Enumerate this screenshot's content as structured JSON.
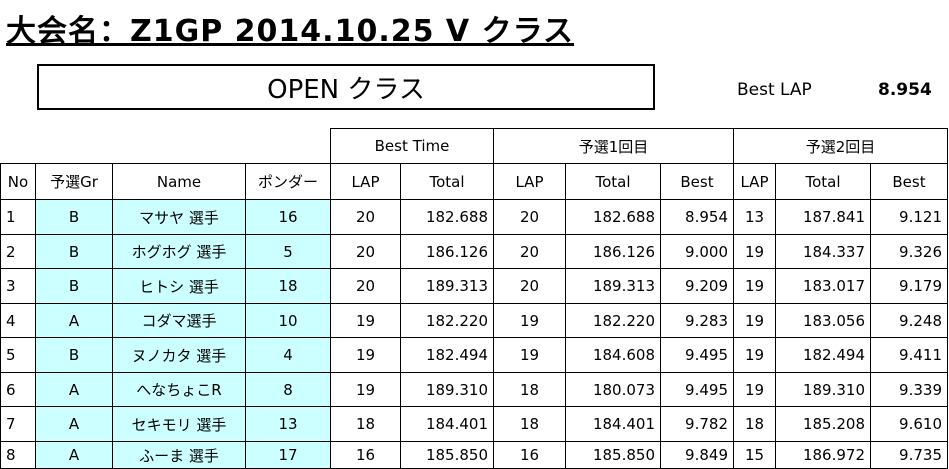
{
  "header": {
    "title": "大会名：Z1GP 2014.10.25 V クラス",
    "class_name": "OPEN クラス",
    "best_lap_label": "Best LAP",
    "best_lap_value": "8.954"
  },
  "table": {
    "group_headers": [
      "Best Time",
      "予選1回目",
      "予選2回目"
    ],
    "headers": [
      "No",
      "予選Gr",
      "Name",
      "ポンダー",
      "LAP",
      "Total",
      "LAP",
      "Total",
      "Best",
      "LAP",
      "Total",
      "Best"
    ],
    "rows": [
      [
        "1",
        "B",
        "マサヤ 選手",
        "16",
        "20",
        "182.688",
        "20",
        "182.688",
        "8.954",
        "13",
        "187.841",
        "9.121"
      ],
      [
        "2",
        "B",
        "ホグホグ 選手",
        "5",
        "20",
        "186.126",
        "20",
        "186.126",
        "9.000",
        "19",
        "184.337",
        "9.326"
      ],
      [
        "3",
        "B",
        "ヒトシ 選手",
        "18",
        "20",
        "189.313",
        "20",
        "189.313",
        "9.209",
        "19",
        "183.017",
        "9.179"
      ],
      [
        "4",
        "A",
        "コダマ選手",
        "10",
        "19",
        "182.220",
        "19",
        "182.220",
        "9.283",
        "19",
        "183.056",
        "9.248"
      ],
      [
        "5",
        "B",
        "ヌノカタ 選手",
        "4",
        "19",
        "182.494",
        "19",
        "184.608",
        "9.495",
        "19",
        "182.494",
        "9.411"
      ],
      [
        "6",
        "A",
        "へなちょこR",
        "8",
        "19",
        "189.310",
        "18",
        "180.073",
        "9.495",
        "19",
        "189.310",
        "9.339"
      ],
      [
        "7",
        "A",
        "セキモリ 選手",
        "13",
        "18",
        "184.401",
        "18",
        "184.401",
        "9.782",
        "18",
        "185.208",
        "9.610"
      ],
      [
        "8",
        "A",
        "ふーま 選手",
        "17",
        "16",
        "185.850",
        "16",
        "185.850",
        "9.849",
        "15",
        "186.972",
        "9.735"
      ]
    ]
  }
}
